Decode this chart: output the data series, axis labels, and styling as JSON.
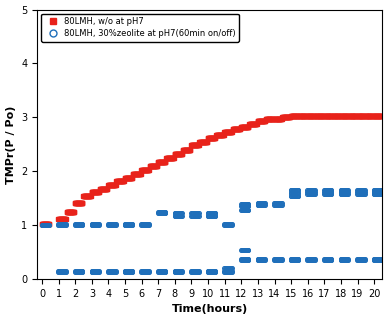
{
  "title": "",
  "xlabel": "Time(hours)",
  "ylabel": "TMPr(P / Po)",
  "xlim": [
    -0.3,
    20.5
  ],
  "ylim": [
    0,
    5
  ],
  "xticks": [
    0,
    1,
    2,
    3,
    4,
    5,
    6,
    7,
    8,
    9,
    10,
    11,
    12,
    13,
    14,
    15,
    16,
    17,
    18,
    19,
    20
  ],
  "yticks": [
    0,
    1,
    2,
    3,
    4,
    5
  ],
  "legend1": "80LMH, w/o at pH7",
  "legend2": "80LMH, 30%zeolite at pH7(60min on/off)",
  "red_color": "#e8221a",
  "blue_color": "#1f6fba",
  "red_steps": [
    [
      0.0,
      1.02
    ],
    [
      1.0,
      1.12
    ],
    [
      1.5,
      1.25
    ],
    [
      2.0,
      1.42
    ],
    [
      2.5,
      1.55
    ],
    [
      3.0,
      1.62
    ],
    [
      3.5,
      1.68
    ],
    [
      4.0,
      1.75
    ],
    [
      4.5,
      1.82
    ],
    [
      5.0,
      1.88
    ],
    [
      5.5,
      1.95
    ],
    [
      6.0,
      2.02
    ],
    [
      6.5,
      2.1
    ],
    [
      7.0,
      2.18
    ],
    [
      7.5,
      2.25
    ],
    [
      8.0,
      2.32
    ],
    [
      8.5,
      2.4
    ],
    [
      9.0,
      2.48
    ],
    [
      9.5,
      2.55
    ],
    [
      10.0,
      2.62
    ],
    [
      10.5,
      2.68
    ],
    [
      11.0,
      2.72
    ],
    [
      11.5,
      2.78
    ],
    [
      12.0,
      2.83
    ],
    [
      12.5,
      2.88
    ],
    [
      13.0,
      2.93
    ],
    [
      13.5,
      2.97
    ],
    [
      14.0,
      2.97
    ],
    [
      14.5,
      3.0
    ],
    [
      15.0,
      3.02
    ],
    [
      15.5,
      3.02
    ],
    [
      16.0,
      3.02
    ],
    [
      16.5,
      3.03
    ],
    [
      17.0,
      3.03
    ],
    [
      17.5,
      3.03
    ],
    [
      18.0,
      3.03
    ],
    [
      18.5,
      3.03
    ],
    [
      19.0,
      3.03
    ],
    [
      19.5,
      3.03
    ],
    [
      20.0,
      3.03
    ]
  ],
  "blue_on_data": {
    "0": [
      1.0
    ],
    "1": [
      1.0,
      1.02
    ],
    "2": [
      1.0,
      1.02
    ],
    "3": [
      1.0,
      1.02
    ],
    "4": [
      1.0,
      1.02
    ],
    "5": [
      1.0,
      1.02
    ],
    "6": [
      1.0,
      1.02
    ],
    "7": [
      1.22,
      1.25
    ],
    "8": [
      1.18,
      1.22
    ],
    "9": [
      1.18,
      1.22
    ],
    "10": [
      1.18,
      1.22
    ],
    "11": [
      1.0,
      1.02
    ],
    "12": [
      1.28,
      1.35,
      1.4
    ],
    "13": [
      1.38,
      1.42
    ],
    "14": [
      1.38,
      1.42
    ],
    "15": [
      1.55,
      1.6,
      1.65
    ],
    "16": [
      1.58,
      1.62,
      1.65
    ],
    "17": [
      1.58,
      1.62,
      1.65
    ],
    "18": [
      1.58,
      1.62,
      1.65
    ],
    "19": [
      1.58,
      1.62,
      1.65
    ],
    "20": [
      1.58,
      1.62,
      1.65
    ]
  },
  "blue_off_data": {
    "0": [],
    "1": [
      0.13,
      0.16
    ],
    "2": [
      0.13,
      0.16
    ],
    "3": [
      0.13,
      0.16
    ],
    "4": [
      0.13,
      0.16
    ],
    "5": [
      0.13,
      0.16
    ],
    "6": [
      0.13,
      0.16
    ],
    "7": [
      0.13,
      0.16
    ],
    "8": [
      0.13,
      0.16
    ],
    "9": [
      0.13,
      0.16
    ],
    "10": [
      0.13,
      0.16
    ],
    "11": [
      0.13,
      0.16,
      0.2
    ],
    "12": [
      0.35,
      0.38,
      0.55
    ],
    "13": [
      0.35,
      0.38
    ],
    "14": [
      0.35,
      0.38
    ],
    "15": [
      0.35,
      0.38
    ],
    "16": [
      0.35,
      0.38
    ],
    "17": [
      0.35,
      0.38
    ],
    "18": [
      0.35,
      0.38
    ],
    "19": [
      0.35,
      0.38
    ],
    "20": [
      0.35,
      0.38
    ]
  }
}
